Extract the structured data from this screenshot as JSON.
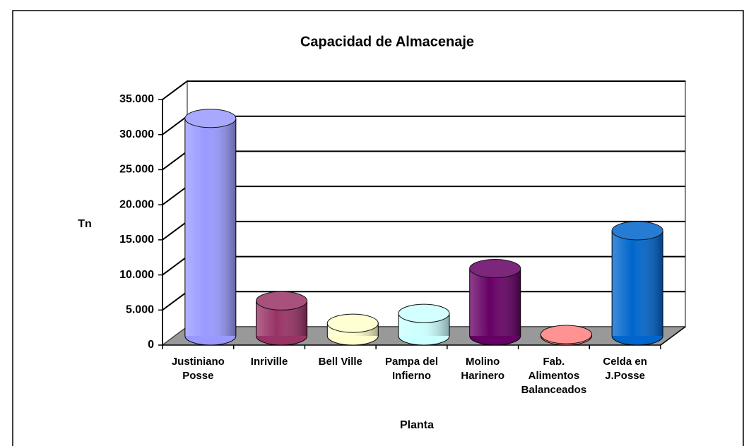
{
  "chart_data": {
    "type": "bar",
    "title": "Capacidad de Almacenaje",
    "x_label": "Planta",
    "y_label": "Tn",
    "categories": [
      "Justiniano Posse",
      "Inriville",
      "Bell Ville",
      "Pampa del Infierno",
      "Molino Harinero",
      "Fab. Alimentos Balanceados",
      "Celda en J.Posse"
    ],
    "series": [
      {
        "name": "Capacidad",
        "colors": [
          "#9999ff",
          "#993366",
          "#ffffcc",
          "#ccffff",
          "#660066",
          "#ff8080",
          "#0066cc"
        ],
        "values": [
          31000,
          5000,
          1800,
          3200,
          9600,
          200,
          15000
        ]
      }
    ],
    "ylim": [
      0,
      35000
    ],
    "yticks": [
      0,
      {
        "value": 5000,
        "label": "5.000"
      },
      {
        "value": 10000,
        "label": "10.000"
      },
      {
        "value": 15000,
        "label": "15.000"
      },
      {
        "value": 20000,
        "label": "20.000"
      },
      {
        "value": 25000,
        "label": "25.000"
      },
      {
        "value": 30000,
        "label": "30.000"
      },
      {
        "value": 35000,
        "label": "35.000"
      }
    ],
    "grid": true
  }
}
